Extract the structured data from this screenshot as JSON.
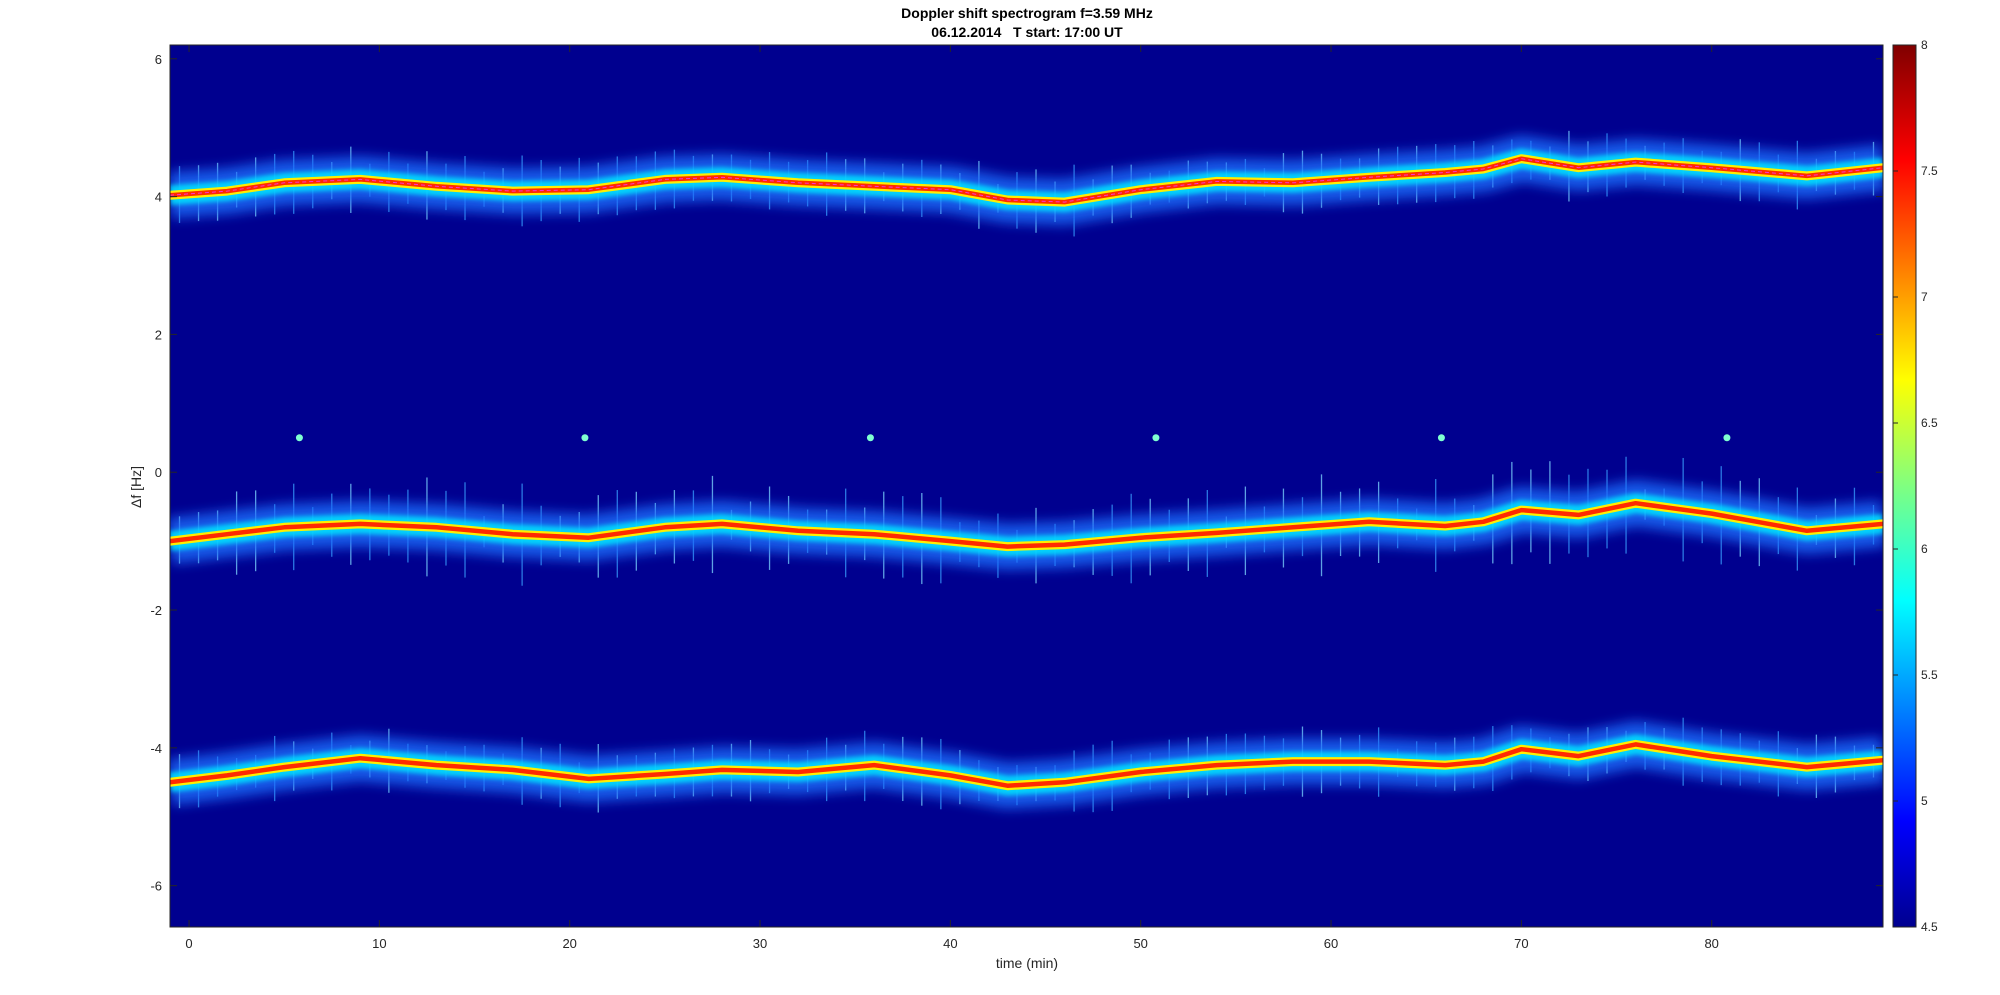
{
  "chart_data": {
    "type": "heatmap",
    "title": "Doppler shift spectrogram f=3.59 MHz",
    "subtitle": "06.12.2014   T start: 17:00 UT",
    "xlabel": "time (min)",
    "ylabel": "Δf [Hz]",
    "xlim": [
      -1,
      89
    ],
    "ylim": [
      -6.6,
      6.2
    ],
    "xticks": [
      0,
      10,
      20,
      30,
      40,
      50,
      60,
      70,
      80
    ],
    "yticks": [
      6,
      4,
      2,
      0,
      -2,
      -4,
      -6
    ],
    "colormap": "jet",
    "colorbar": {
      "limits": [
        4.5,
        8
      ],
      "ticks": [
        8,
        7.5,
        7,
        6.5,
        6,
        5.5,
        5,
        4.5
      ]
    },
    "grid": false,
    "series": [
      {
        "x": [
          -1,
          2,
          5,
          9,
          13,
          17,
          21,
          25,
          28,
          32,
          36,
          40,
          43,
          46,
          50,
          54,
          58,
          62,
          66,
          68,
          70,
          73,
          76,
          80,
          85,
          89
        ],
        "values": [
          4.02,
          4.08,
          4.2,
          4.25,
          4.15,
          4.08,
          4.1,
          4.25,
          4.28,
          4.2,
          4.15,
          4.1,
          3.95,
          3.92,
          4.1,
          4.22,
          4.2,
          4.28,
          4.35,
          4.4,
          4.55,
          4.42,
          4.5,
          4.42,
          4.3,
          4.42
        ]
      },
      {
        "x": [
          -1,
          2,
          5,
          9,
          13,
          17,
          21,
          25,
          28,
          32,
          36,
          40,
          43,
          46,
          50,
          54,
          58,
          62,
          66,
          68,
          70,
          73,
          76,
          80,
          85,
          89
        ],
        "values": [
          -1.0,
          -0.9,
          -0.8,
          -0.75,
          -0.8,
          -0.9,
          -0.95,
          -0.8,
          -0.75,
          -0.85,
          -0.9,
          -1.0,
          -1.08,
          -1.05,
          -0.95,
          -0.88,
          -0.8,
          -0.72,
          -0.78,
          -0.72,
          -0.55,
          -0.62,
          -0.45,
          -0.6,
          -0.85,
          -0.75
        ]
      },
      {
        "x": [
          -1,
          2,
          5,
          9,
          13,
          17,
          21,
          25,
          28,
          32,
          36,
          40,
          43,
          46,
          50,
          54,
          58,
          62,
          66,
          68,
          70,
          73,
          76,
          80,
          85,
          89
        ],
        "values": [
          -4.5,
          -4.4,
          -4.28,
          -4.15,
          -4.25,
          -4.32,
          -4.45,
          -4.38,
          -4.32,
          -4.35,
          -4.25,
          -4.4,
          -4.55,
          -4.5,
          -4.35,
          -4.25,
          -4.2,
          -4.2,
          -4.25,
          -4.2,
          -4.02,
          -4.12,
          -3.95,
          -4.12,
          -4.28,
          -4.18
        ]
      }
    ],
    "beacon_marks": {
      "x": [
        5.8,
        20.8,
        35.8,
        50.8,
        65.8,
        80.8
      ],
      "values": [
        0.5,
        0.5,
        0.5,
        0.5,
        0.5,
        0.5
      ]
    }
  }
}
